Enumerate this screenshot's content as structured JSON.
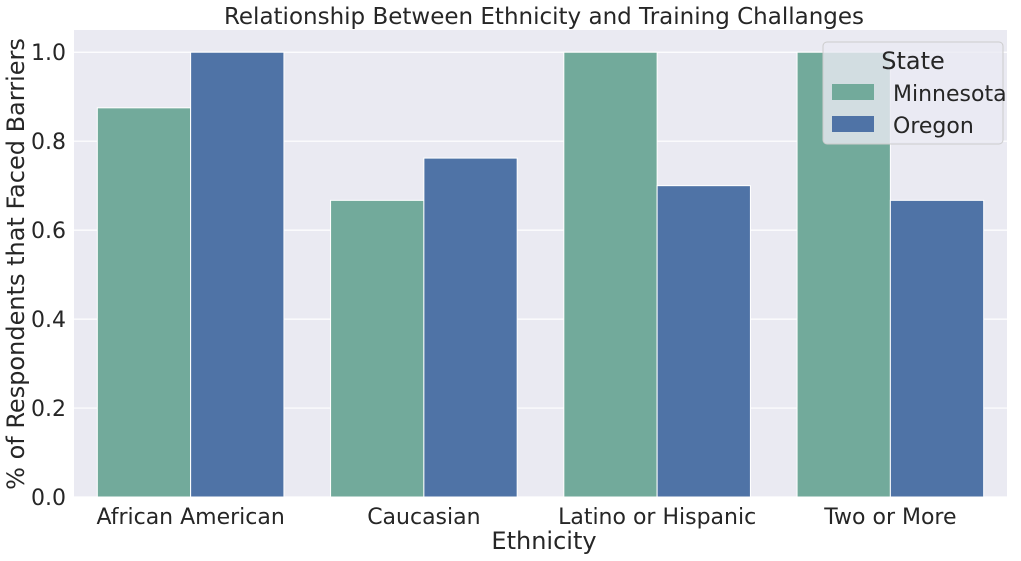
{
  "chart_data": {
    "type": "bar",
    "title": "Relationship Between Ethnicity and Training Challanges",
    "xlabel": "Ethnicity",
    "ylabel": "% of Respondents that Faced Barriers",
    "categories": [
      "African American",
      "Caucasian",
      "Latino or Hispanic",
      "Two or More"
    ],
    "series": [
      {
        "name": "Minnesota",
        "color": "#72aa9b",
        "values": [
          0.875,
          0.667,
          1.0,
          1.0
        ]
      },
      {
        "name": "Oregon",
        "color": "#4f73a6",
        "values": [
          1.0,
          0.762,
          0.7,
          0.667
        ]
      }
    ],
    "ylim": [
      0,
      1.05
    ],
    "yticks": [
      "0.0",
      "0.2",
      "0.4",
      "0.6",
      "0.8",
      "1.0"
    ],
    "grid": true,
    "background": "#eaeaf2",
    "legend": {
      "title": "State",
      "position": "top-right"
    }
  }
}
